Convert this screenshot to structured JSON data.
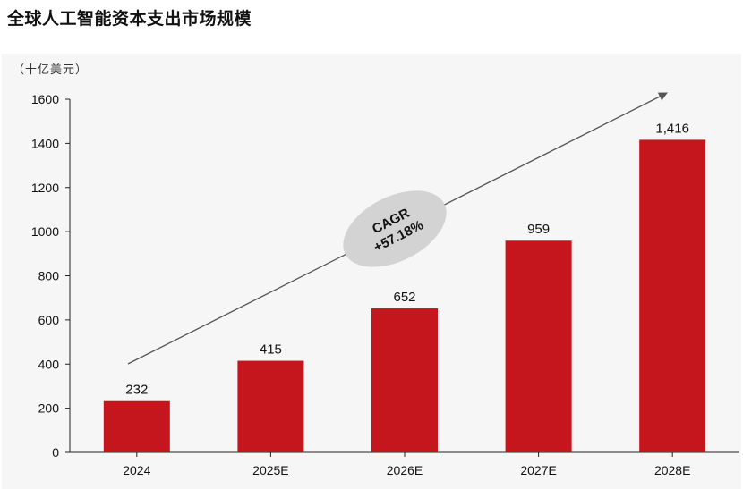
{
  "header": {
    "title": "全球人工智能资本支出市场规模"
  },
  "chart_data": {
    "type": "bar",
    "title": "全球人工智能资本支出市场规模",
    "unit": "（十亿美元）",
    "categories": [
      "2024",
      "2025E",
      "2026E",
      "2027E",
      "2028E"
    ],
    "values": [
      232,
      415,
      652,
      959,
      1416
    ],
    "value_labels": [
      "232",
      "415",
      "652",
      "959",
      "1,416"
    ],
    "ylim": [
      0,
      1600
    ],
    "yticks": [
      0,
      200,
      400,
      600,
      800,
      1000,
      1200,
      1400,
      1600
    ],
    "grid": false,
    "bar_color": "#c4161c",
    "annotation": {
      "line1": "CAGR",
      "line2": "+57.18%"
    }
  }
}
